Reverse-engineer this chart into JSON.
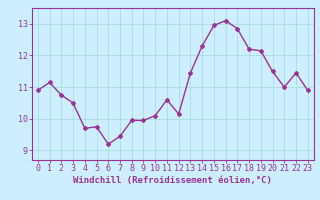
{
  "x": [
    0,
    1,
    2,
    3,
    4,
    5,
    6,
    7,
    8,
    9,
    10,
    11,
    12,
    13,
    14,
    15,
    16,
    17,
    18,
    19,
    20,
    21,
    22,
    23
  ],
  "y": [
    10.9,
    11.15,
    10.75,
    10.5,
    9.7,
    9.75,
    9.2,
    9.45,
    9.95,
    9.95,
    10.1,
    10.6,
    10.15,
    11.45,
    12.3,
    12.95,
    13.1,
    12.85,
    12.2,
    12.15,
    11.5,
    11.0,
    11.45,
    10.9
  ],
  "line_color": "#993399",
  "marker": "D",
  "marker_size": 2.0,
  "bg_color": "#cceeff",
  "grid_color": "#aadddd",
  "axis_color": "#993399",
  "tick_color": "#993399",
  "xlabel": "Windchill (Refroidissement éolien,°C)",
  "ylim": [
    8.7,
    13.5
  ],
  "yticks": [
    9,
    10,
    11,
    12,
    13
  ],
  "xticks": [
    0,
    1,
    2,
    3,
    4,
    5,
    6,
    7,
    8,
    9,
    10,
    11,
    12,
    13,
    14,
    15,
    16,
    17,
    18,
    19,
    20,
    21,
    22,
    23
  ],
  "xlabel_fontsize": 6.5,
  "tick_fontsize": 6.0,
  "line_width": 1.0
}
